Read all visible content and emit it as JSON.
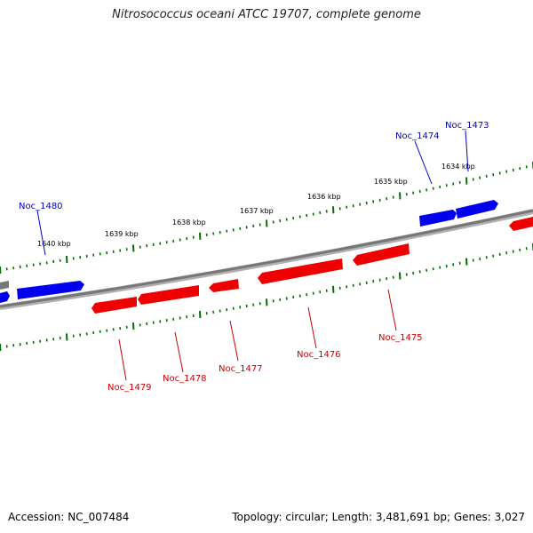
{
  "title": "Nitrosococcus oceani ATCC 19707, complete genome",
  "footer": {
    "accession": "Accession: NC_007484",
    "summary": "Topology: circular; Length: 3,481,691 bp; Genes: 3,027"
  },
  "colors": {
    "forward_gene": "#0000ee",
    "reverse_gene": "#ee0000",
    "backbone": "#808080",
    "ticks": "#007000"
  },
  "scale_labels": [
    "1640 kbp",
    "1639 kbp",
    "1638 kbp",
    "1637 kbp",
    "1636 kbp",
    "1635 kbp",
    "1634 kbp"
  ],
  "genes": [
    {
      "name": "Noc_1480",
      "strand": "+"
    },
    {
      "name": "Noc_1474",
      "strand": "+"
    },
    {
      "name": "Noc_1473",
      "strand": "+"
    },
    {
      "name": "Noc_1479",
      "strand": "-"
    },
    {
      "name": "Noc_1478",
      "strand": "-"
    },
    {
      "name": "Noc_1477",
      "strand": "-"
    },
    {
      "name": "Noc_1476",
      "strand": "-"
    },
    {
      "name": "Noc_1475",
      "strand": "-"
    }
  ]
}
